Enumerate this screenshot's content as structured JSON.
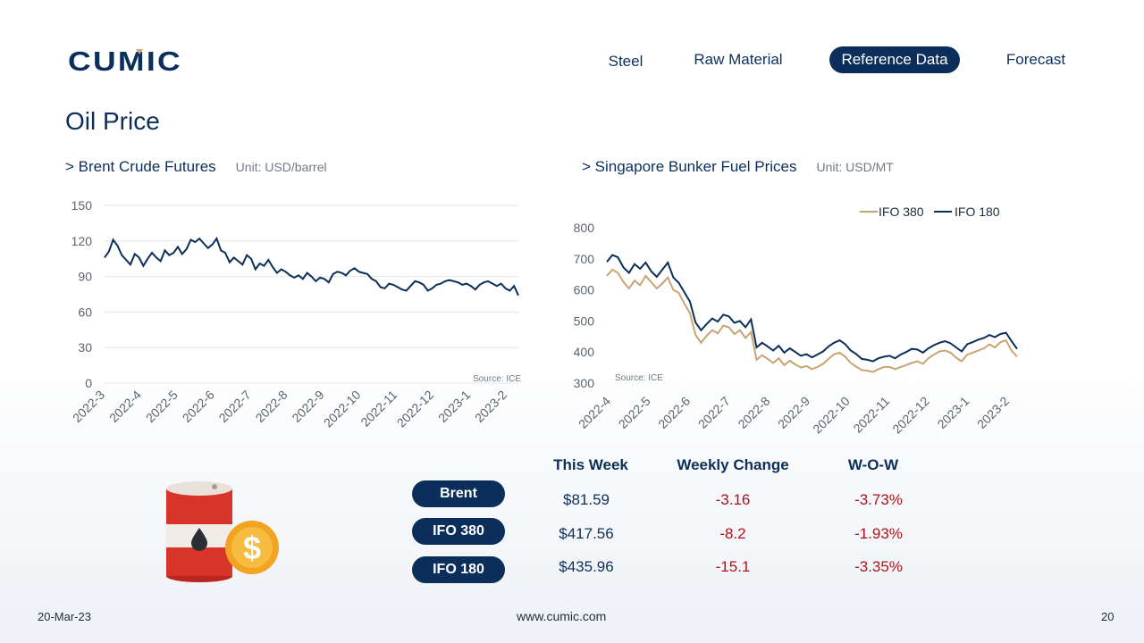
{
  "brand": {
    "logo_text": "CUMIC"
  },
  "nav": [
    {
      "label": "Steel"
    },
    {
      "label": "Raw Material"
    },
    {
      "label": "Reference Data",
      "active": true
    },
    {
      "label": "Forecast"
    }
  ],
  "page_title": "Oil Price",
  "sections": {
    "brent": {
      "title": "> Brent Crude Futures",
      "unit": "Unit: USD/barrel",
      "source": "Source: ICE"
    },
    "bunker": {
      "title": "> Singapore Bunker Fuel Prices",
      "unit": "Unit: USD/MT",
      "source": "Source: ICE"
    }
  },
  "table": {
    "headers": [
      "This Week",
      "Weekly Change",
      "W-O-W"
    ],
    "rows": [
      {
        "name": "Brent",
        "price": "$81.59",
        "change": "-3.16",
        "wow": "-3.73%"
      },
      {
        "name": "IFO 380",
        "price": "$417.56",
        "change": "-8.2",
        "wow": "-1.93%"
      },
      {
        "name": "IFO 180",
        "price": "$435.96",
        "change": "-15.1",
        "wow": "-3.35%"
      }
    ]
  },
  "footer": {
    "date": "20-Mar-23",
    "url": "www.cumic.com",
    "page": "20"
  },
  "colors": {
    "navy": "#0b2f5a",
    "gold": "#c9a473",
    "negative": "#b0121b"
  },
  "chart_data": [
    {
      "type": "line",
      "ylim": [
        0,
        150
      ],
      "yticks": [
        0,
        30,
        60,
        90,
        120,
        150
      ],
      "xticks": [
        "2022-3",
        "2022-4",
        "2022-5",
        "2022-6",
        "2022-7",
        "2022-8",
        "2022-9",
        "2022-10",
        "2022-11",
        "2022-12",
        "2023-1",
        "2023-2"
      ],
      "grid": true,
      "series": [
        {
          "values": [
            106,
            111,
            121,
            116,
            108,
            104,
            100,
            109,
            106,
            99,
            105,
            110,
            106,
            103,
            112,
            108,
            110,
            115,
            109,
            113,
            121,
            119,
            122,
            118,
            114,
            117,
            122,
            112,
            110,
            102,
            106,
            103,
            100,
            108,
            105,
            96,
            101,
            99,
            104,
            98,
            93,
            96,
            94,
            91,
            89,
            91,
            88,
            93,
            90,
            86,
            89,
            88,
            85,
            92,
            94,
            93,
            91,
            95,
            97,
            94,
            93,
            92,
            88,
            86,
            81,
            80,
            84,
            83,
            81,
            79,
            78,
            82,
            86,
            85,
            83,
            78,
            80,
            83,
            84,
            86,
            87,
            86,
            85,
            83,
            84,
            82,
            79,
            83,
            85,
            86,
            84,
            82,
            84,
            80,
            78,
            82,
            74
          ]
        }
      ]
    },
    {
      "type": "line",
      "ylim": [
        300,
        800
      ],
      "yticks": [
        300,
        400,
        500,
        600,
        700,
        800
      ],
      "xticks": [
        "2022-4",
        "2022-5",
        "2022-6",
        "2022-7",
        "2022-8",
        "2022-9",
        "2022-10",
        "2022-11",
        "2022-12",
        "2023-1",
        "2023-2"
      ],
      "legend": "top-right",
      "series": [
        {
          "name": "IFO 380",
          "color": "#c9a473",
          "values": [
            645,
            665,
            655,
            625,
            605,
            630,
            615,
            645,
            625,
            605,
            620,
            640,
            600,
            590,
            555,
            525,
            455,
            430,
            452,
            470,
            460,
            485,
            480,
            458,
            470,
            445,
            465,
            375,
            390,
            378,
            365,
            380,
            358,
            372,
            360,
            350,
            355,
            345,
            352,
            362,
            378,
            393,
            398,
            385,
            365,
            353,
            342,
            340,
            336,
            345,
            352,
            352,
            345,
            352,
            358,
            365,
            370,
            362,
            380,
            392,
            402,
            405,
            398,
            382,
            370,
            392,
            398,
            405,
            412,
            425,
            415,
            432,
            438,
            405,
            385
          ]
        },
        {
          "name": "IFO 180",
          "color": "#0b2f5a",
          "values": [
            690,
            712,
            705,
            672,
            655,
            683,
            668,
            688,
            660,
            642,
            665,
            688,
            640,
            622,
            592,
            562,
            495,
            470,
            490,
            508,
            498,
            520,
            515,
            494,
            500,
            480,
            505,
            415,
            430,
            418,
            405,
            420,
            398,
            412,
            400,
            388,
            393,
            383,
            392,
            402,
            418,
            430,
            438,
            425,
            405,
            393,
            378,
            375,
            370,
            380,
            385,
            388,
            380,
            392,
            400,
            410,
            408,
            398,
            412,
            422,
            430,
            435,
            428,
            415,
            402,
            425,
            432,
            440,
            445,
            455,
            448,
            458,
            462,
            435,
            410
          ]
        }
      ]
    }
  ]
}
